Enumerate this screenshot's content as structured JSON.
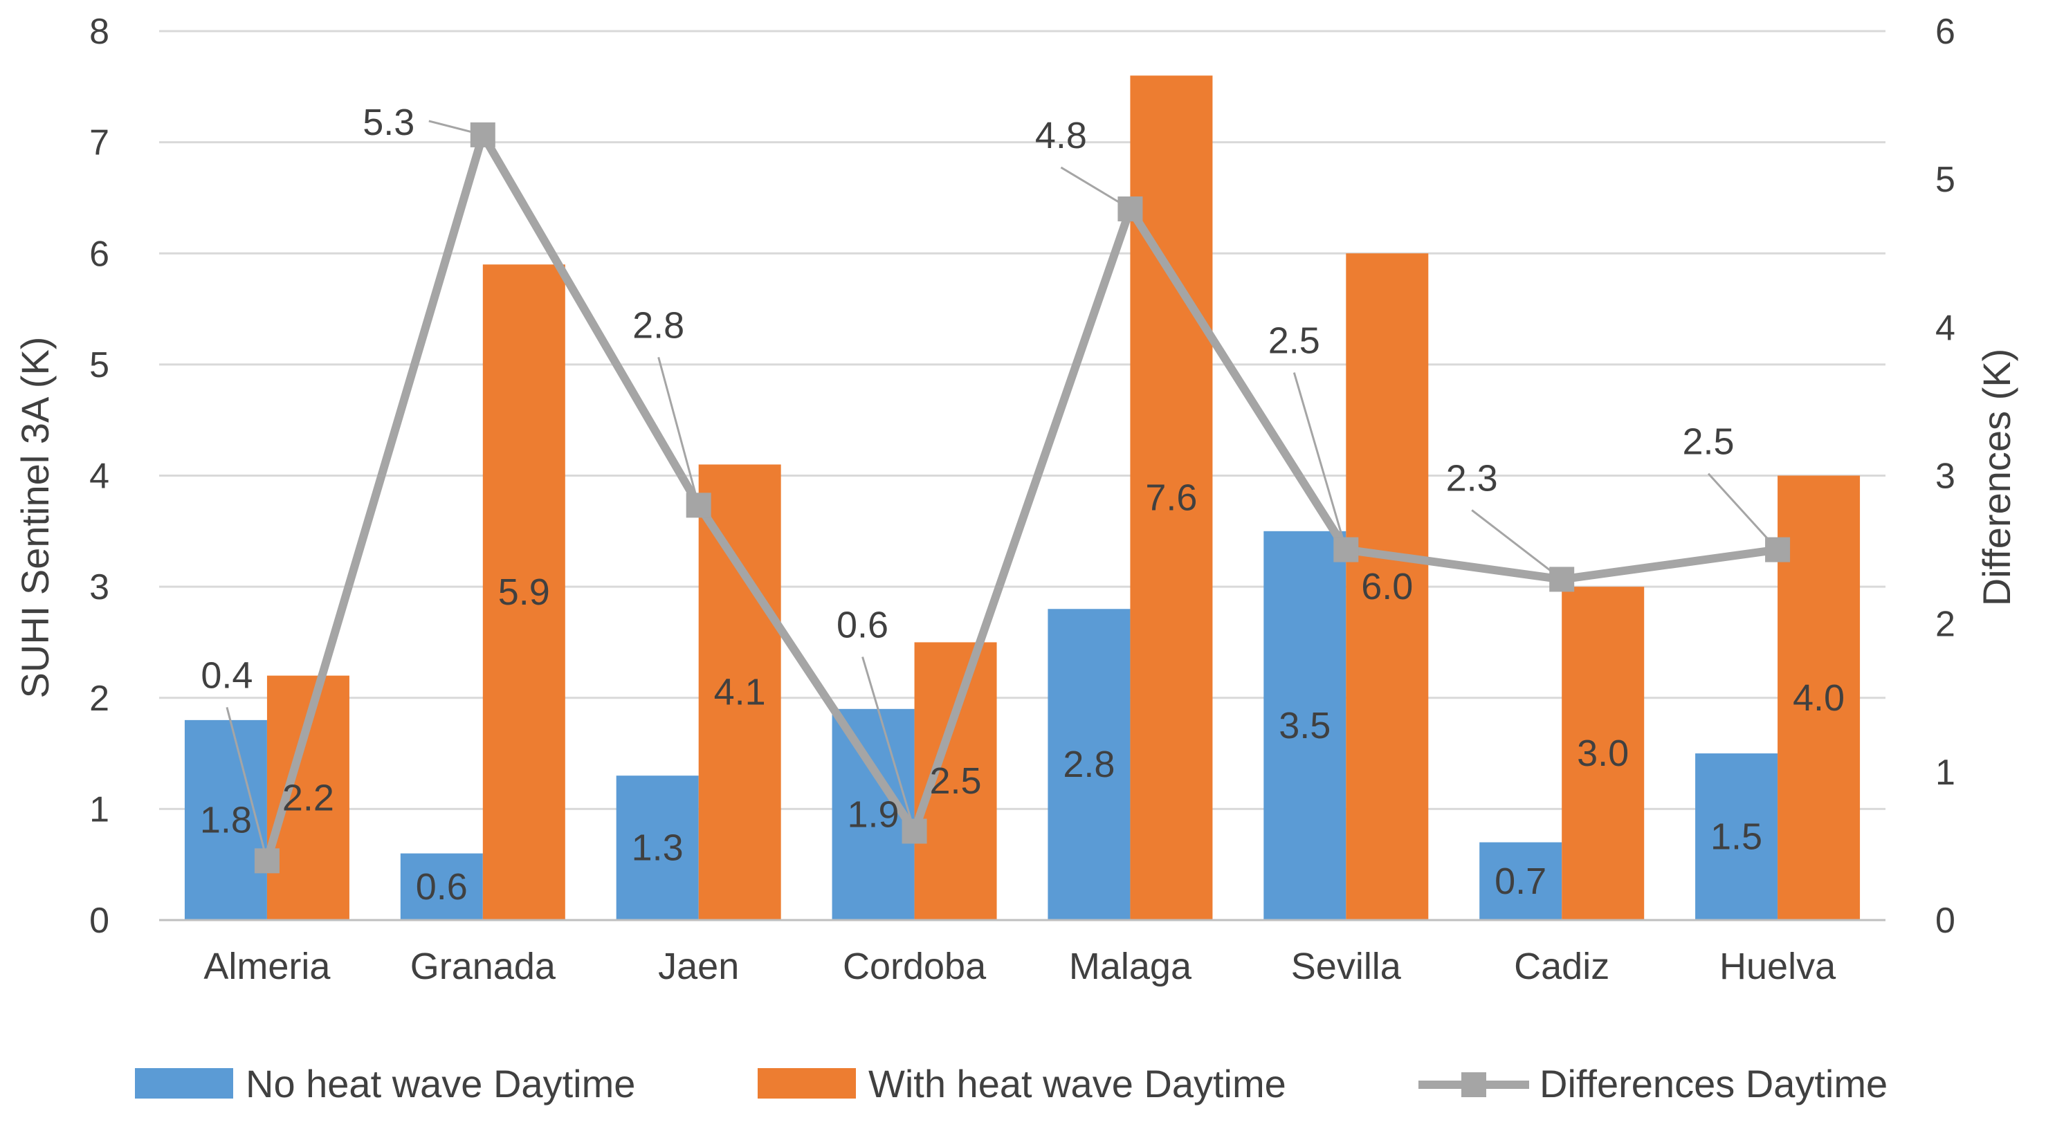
{
  "chart_data": {
    "type": "bar",
    "categories": [
      "Almeria",
      "Granada",
      "Jaen",
      "Cordoba",
      "Malaga",
      "Sevilla",
      "Cadiz",
      "Huelva"
    ],
    "series": [
      {
        "name": "No heat wave Daytime",
        "kind": "bar",
        "axis": "left",
        "color": "#5B9BD5",
        "values": [
          1.8,
          0.6,
          1.3,
          1.9,
          2.8,
          3.5,
          0.7,
          1.5
        ],
        "labels": [
          "1.8",
          "0.6",
          "1.3",
          "1.9",
          "2.8",
          "3.5",
          "0.7",
          "1.5"
        ]
      },
      {
        "name": "With heat wave Daytime",
        "kind": "bar",
        "axis": "left",
        "color": "#ED7D31",
        "values": [
          2.2,
          5.9,
          4.1,
          2.5,
          7.6,
          6.0,
          3.0,
          4.0
        ],
        "labels": [
          "2.2",
          "5.9",
          "4.1",
          "2.5",
          "7.6",
          "6.0",
          "3.0",
          "4.0"
        ]
      },
      {
        "name": "Differences Daytime",
        "kind": "line",
        "axis": "right",
        "color": "#A5A5A5",
        "values": [
          0.4,
          5.3,
          2.8,
          0.6,
          4.8,
          2.5,
          2.3,
          2.5
        ],
        "labels": [
          "0.4",
          "5.3",
          "2.8",
          "0.6",
          "4.8",
          "2.5",
          "2.3",
          "2.5"
        ]
      }
    ],
    "ylabel": "SUHI Sentinel 3A (K)",
    "y2label": "Differences (K)",
    "ylim": [
      0,
      8
    ],
    "y2lim": [
      0,
      6
    ],
    "yticks": [
      "0",
      "1",
      "2",
      "3",
      "4",
      "5",
      "6",
      "7",
      "8"
    ],
    "y2ticks": [
      "0",
      "1",
      "2",
      "3",
      "4",
      "5",
      "6"
    ],
    "grid": true,
    "legend_position": "bottom"
  }
}
